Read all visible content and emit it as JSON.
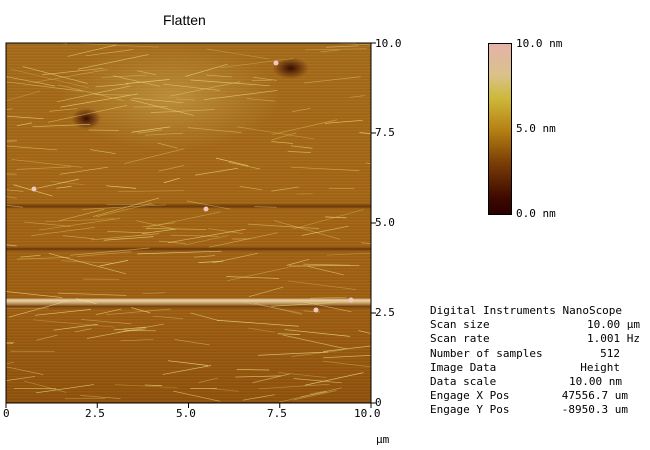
{
  "title": "Flatten",
  "x_axis": {
    "ticks": [
      "0",
      "2.5",
      "5.0",
      "7.5",
      "10.0"
    ],
    "unit": "µm"
  },
  "y_axis": {
    "ticks": [
      "0",
      "2.5",
      "5.0",
      "7.5",
      "10.0"
    ]
  },
  "colorbar": {
    "max_label": "10.0 nm",
    "mid_label": "5.0 nm",
    "min_label": "0.0 nm",
    "colors": [
      "#e6b2a9",
      "#cdb83a",
      "#b78214",
      "#7a3e05",
      "#2a0000"
    ]
  },
  "info": {
    "header": "Digital Instruments NanoScope",
    "rows": [
      {
        "label": "Scan size",
        "value": "10.00 µm"
      },
      {
        "label": "Scan rate",
        "value": "1.001 Hz"
      },
      {
        "label": "Number of samples",
        "value": "512"
      },
      {
        "label": "Image Data",
        "value": "Height"
      },
      {
        "label": "Data scale",
        "value": "10.00 nm"
      },
      {
        "label": "Engage X Pos",
        "value": "47556.7 um"
      },
      {
        "label": "Engage Y Pos",
        "value": "-8950.3 um"
      }
    ]
  }
}
